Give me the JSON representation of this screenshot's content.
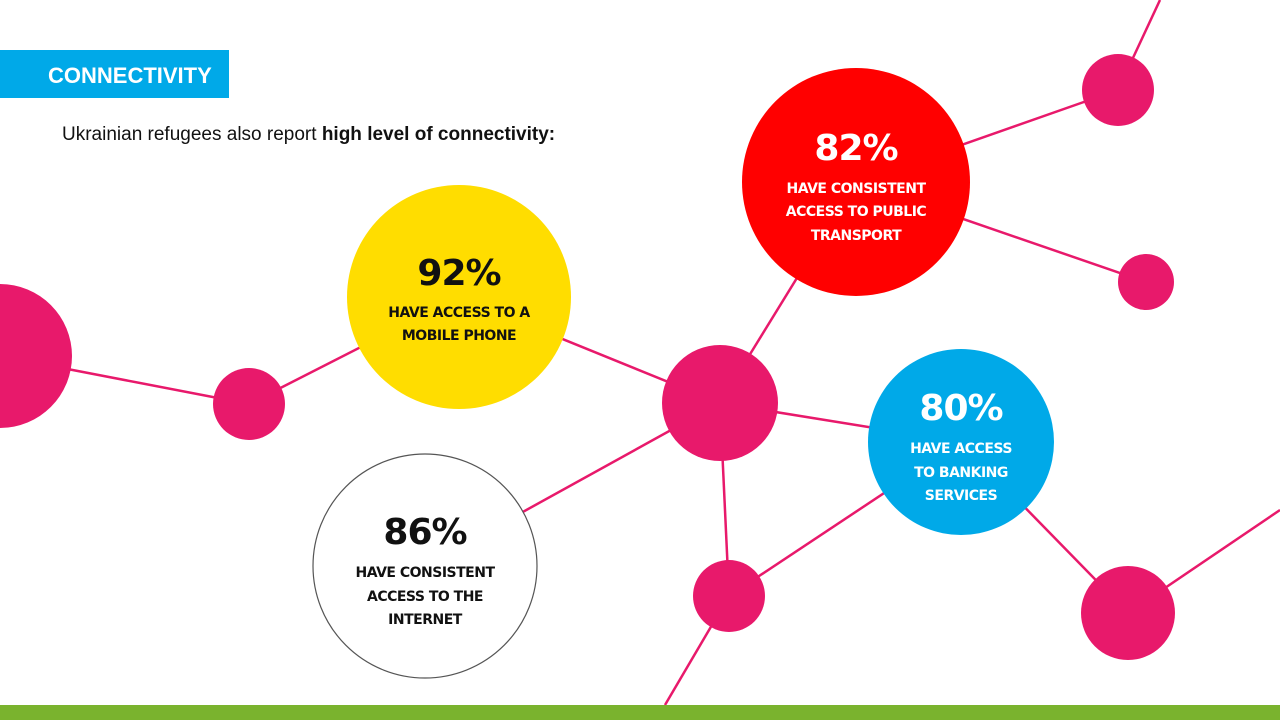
{
  "header": {
    "title": "CONNECTIVITY"
  },
  "intro": {
    "text": "Ukrainian refugees also report ",
    "emphasis": "high level of connectivity:"
  },
  "stats": [
    {
      "value": "92%",
      "lines": [
        "HAVE ACCESS TO A",
        "MOBILE PHONE"
      ]
    },
    {
      "value": "82%",
      "lines": [
        "HAVE CONSISTENT",
        "ACCESS TO PUBLIC",
        "TRANSPORT"
      ]
    },
    {
      "value": "80%",
      "lines": [
        "HAVE ACCESS",
        "TO BANKING",
        "SERVICES"
      ]
    },
    {
      "value": "86%",
      "lines": [
        "HAVE CONSISTENT",
        "ACCESS TO THE",
        "INTERNET"
      ]
    }
  ]
}
